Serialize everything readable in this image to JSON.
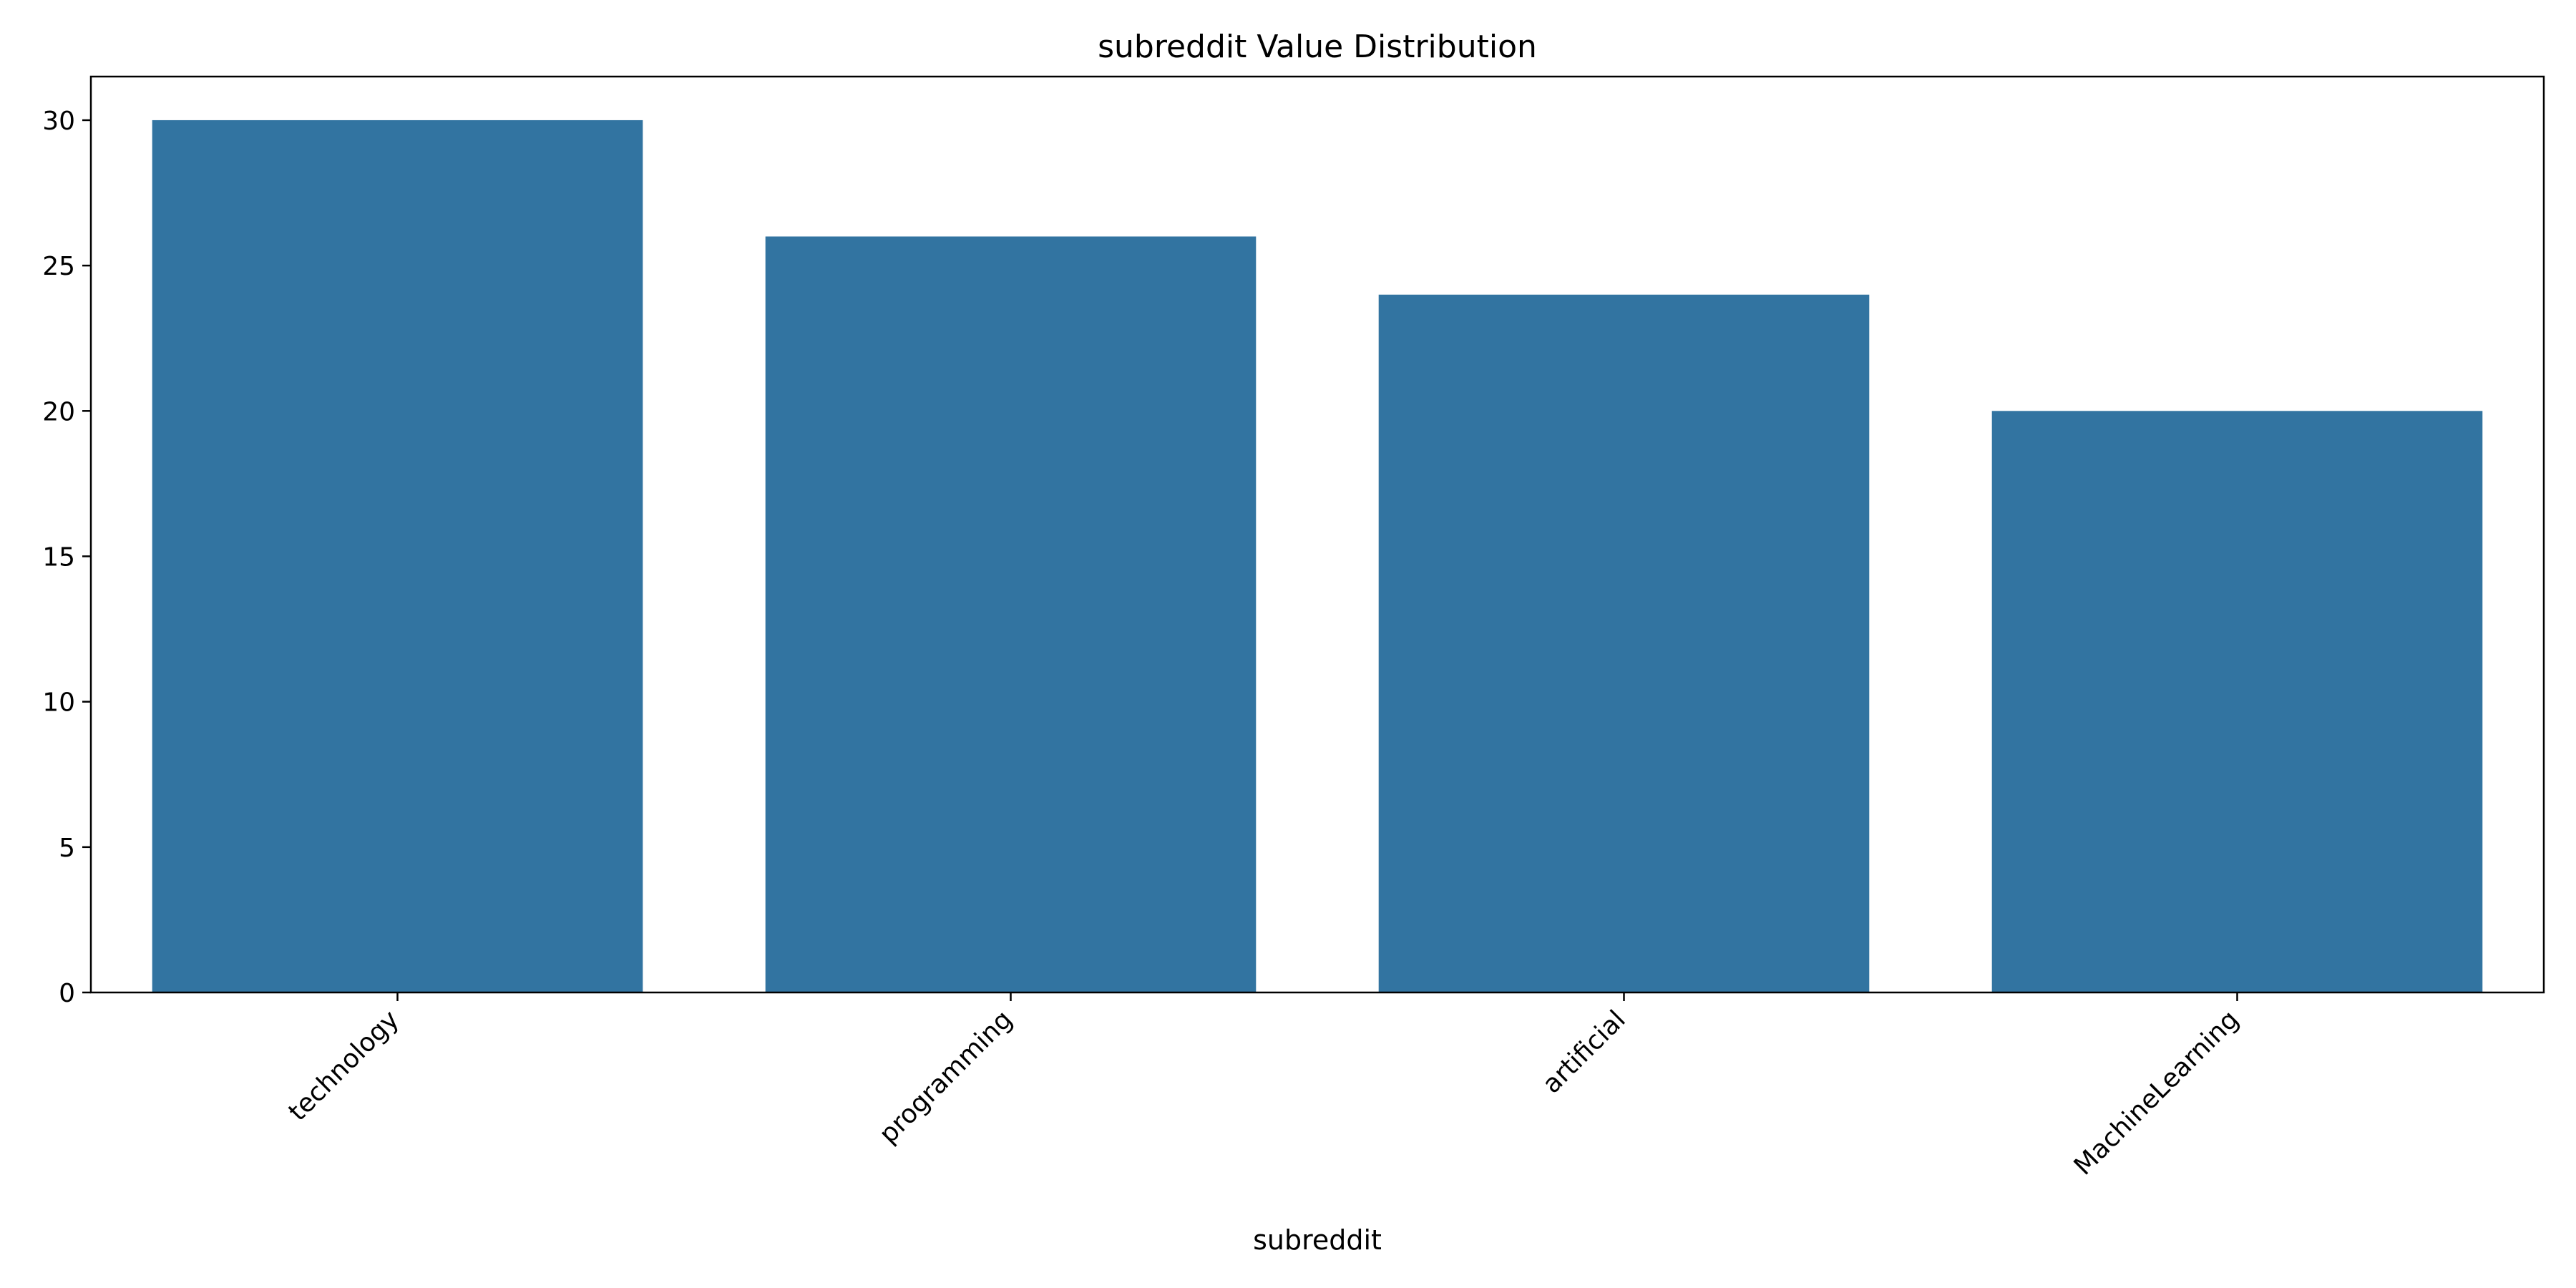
{
  "chart_data": {
    "type": "bar",
    "title": "subreddit Value Distribution",
    "xlabel": "subreddit",
    "ylabel": "",
    "categories": [
      "technology",
      "programming",
      "artificial",
      "MachineLearning"
    ],
    "values": [
      30,
      26,
      24,
      20
    ],
    "ylim": [
      0,
      31.5
    ],
    "yticks": [
      0,
      5,
      10,
      15,
      20,
      25,
      30
    ],
    "bar_color": "#3274a1",
    "grid": false,
    "legend": "none"
  }
}
